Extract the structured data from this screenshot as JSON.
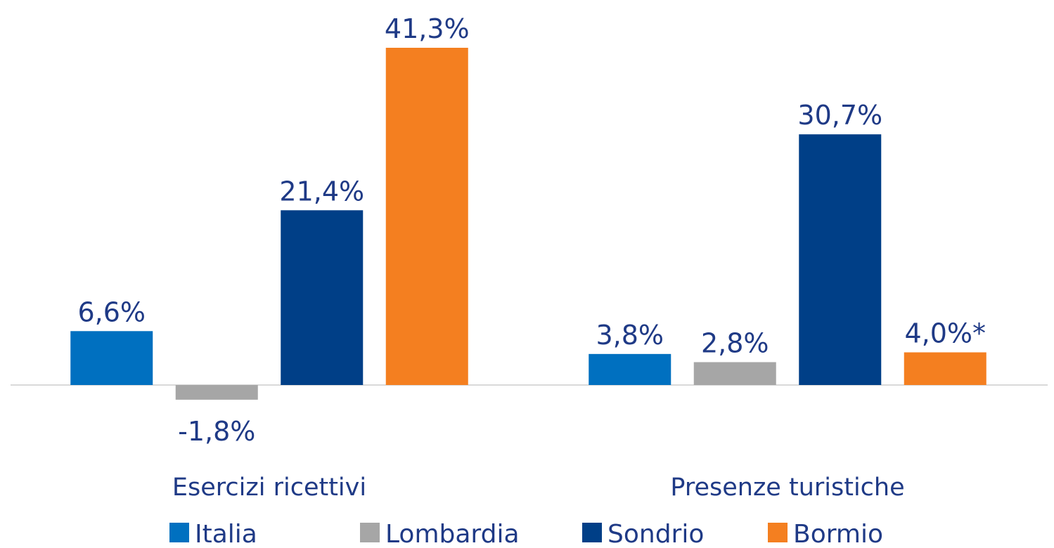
{
  "chart_data": {
    "type": "bar",
    "categories": [
      "Esercizi ricettivi",
      "Presenze turistiche"
    ],
    "series": [
      {
        "name": "Italia",
        "color": "#0070c0",
        "values": [
          6.6,
          3.8
        ],
        "value_labels": [
          "6,6%",
          "3,8%"
        ]
      },
      {
        "name": "Lombardia",
        "color": "#a6a6a6",
        "values": [
          -1.8,
          2.8
        ],
        "value_labels": [
          "-1,8%",
          "2,8%"
        ]
      },
      {
        "name": "Sondrio",
        "color": "#003f87",
        "values": [
          21.4,
          30.7
        ],
        "value_labels": [
          "21,4%",
          "30,7%"
        ]
      },
      {
        "name": "Bormio",
        "color": "#f47f20",
        "values": [
          41.3,
          4.0
        ],
        "value_labels": [
          "41,3%",
          "4,0%*"
        ]
      }
    ],
    "legend": "bottom"
  }
}
